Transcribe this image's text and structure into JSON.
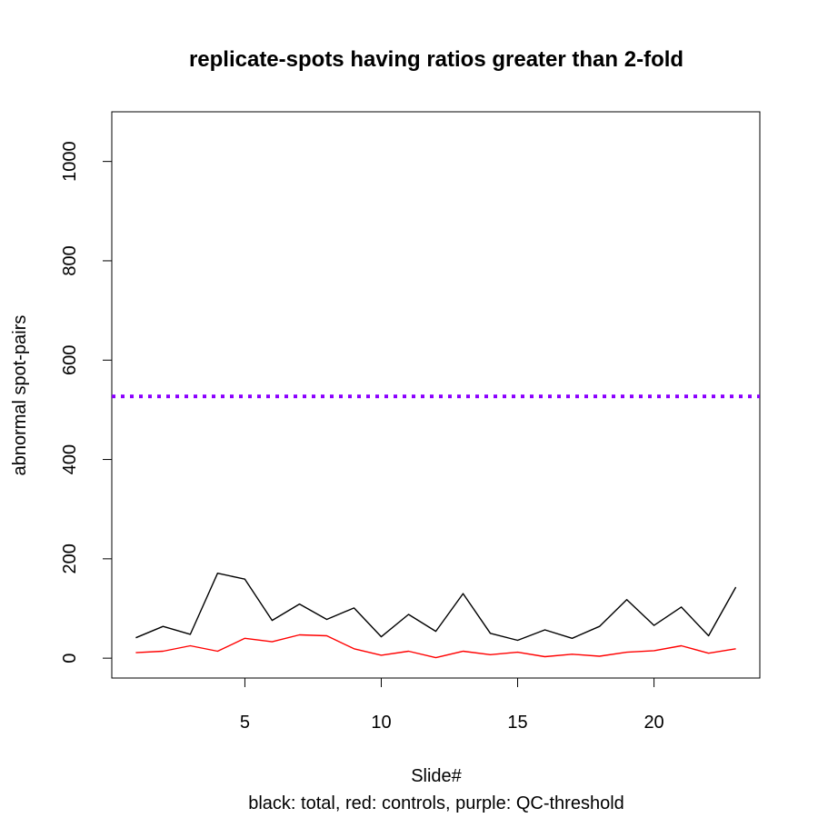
{
  "chart_data": {
    "type": "line",
    "title": "replicate-spots having ratios greater than 2-fold",
    "xlabel": "Slide#",
    "ylabel": "abnormal spot-pairs",
    "subtitle": "black: total, red: controls, purple: QC-threshold",
    "xlim": [
      0.12,
      23.88
    ],
    "ylim": [
      -40,
      1100
    ],
    "xticks": [
      5,
      10,
      15,
      20
    ],
    "yticks": [
      0,
      200,
      400,
      600,
      800,
      1000
    ],
    "x": [
      1,
      2,
      3,
      4,
      5,
      6,
      7,
      8,
      9,
      10,
      11,
      12,
      13,
      14,
      15,
      16,
      17,
      18,
      19,
      20,
      21,
      22,
      23
    ],
    "series": [
      {
        "color": "#000000",
        "values": [
          41,
          64,
          48,
          171,
          159,
          76,
          109,
          78,
          101,
          43,
          88,
          54,
          130,
          50,
          36,
          57,
          40,
          64,
          118,
          66,
          103,
          45,
          143
        ]
      },
      {
        "color": "#ff0000",
        "values": [
          11,
          14,
          25,
          14,
          40,
          33,
          47,
          45,
          19,
          6,
          14,
          1,
          14,
          7,
          12,
          3,
          8,
          4,
          12,
          15,
          25,
          10,
          19
        ]
      }
    ],
    "threshold": {
      "value": 527,
      "color": "#8b00ff",
      "style": "dotted"
    }
  }
}
